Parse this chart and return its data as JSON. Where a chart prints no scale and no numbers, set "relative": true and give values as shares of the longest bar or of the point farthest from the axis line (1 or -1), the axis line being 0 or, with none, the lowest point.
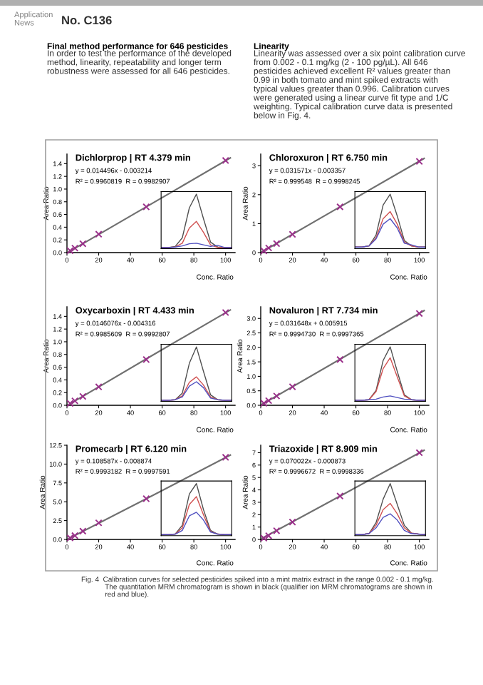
{
  "chart_data": [
    {
      "type": "other",
      "annotations": [
        "Application\nNews",
        "No. C136",
        "Final method performance for 646 pesticides",
        "In order to test the performance of the developed\nmethod, linearity, repeatability and longer term\nrobustness were assessed for all 646 pesticides.",
        "Linearity",
        "Linearity was assessed over a six point calibration curve\nfrom 0.002 - 0.1 mg/kg (2 - 100 pg/µL). All 646\npesticides achieved excellent R² values greater than\n0.99 in both tomato and mint spiked extracts with\ntypical values greater than 0.996. Calibration curves\nwere generated using a linear curve fit type and 1/C\nweighting. Typical calibration curve data is presented\nbelow in Fig. 4.",
        "Fig. 4  Calibration curves for selected pesticides spiked into a mint matrix extract in the range 0.002 - 0.1 mg/kg.\n            The quantitation MRM chromatogram is shown in black (qualifier ion MRM chromatograms are shown in\n            red and blue)."
      ]
    },
    {
      "type": "scatter",
      "title": "Dichlorprop | RT 4.379 min",
      "annotations": [
        "y = 0.014496x - 0.003214",
        "R² = 0.9960819  R = 0.9982907"
      ],
      "xlabel": "Conc. Ratio",
      "ylabel": "Area Ratio",
      "marker": "cross",
      "x": [
        2,
        5,
        10,
        20,
        50,
        100
      ],
      "xlim": [
        0,
        106
      ],
      "xticks": [
        0,
        20,
        40,
        60,
        80,
        100
      ],
      "ylim": [
        0,
        1.55
      ],
      "yticks": [
        {
          "value": 0,
          "label": "0.0"
        },
        0.2,
        0.4,
        0.6,
        0.8,
        {
          "value": 1,
          "label": "1.0"
        },
        1.2,
        1.4
      ],
      "series": [
        {
          "color": "#9a2f8a",
          "values": [
            0.03,
            0.07,
            0.14,
            0.29,
            0.72,
            1.45
          ]
        },
        {
          "type": "line",
          "marker": "none",
          "color": "#707070",
          "x": [
            1,
            50,
            103
          ],
          "values": [
            0.01,
            0.72,
            1.49
          ]
        }
      ]
    },
    {
      "type": "line",
      "relative": true,
      "categories": [
        null,
        null,
        null,
        null,
        null,
        null,
        null,
        null,
        null,
        null,
        null
      ],
      "series": [
        {
          "color": "#505050",
          "values": [
            0.02,
            0.02,
            0.04,
            0.2,
            0.75,
            1,
            0.55,
            0.12,
            0.03,
            0.02,
            0.02
          ]
        },
        {
          "color": "#d05050",
          "values": [
            0.02,
            0.02,
            0.03,
            0.1,
            0.38,
            0.5,
            0.3,
            0.07,
            0.02,
            0.02,
            0.02
          ]
        },
        {
          "color": "#5050c0",
          "values": [
            0.02,
            0.02,
            0.03,
            0.05,
            0.09,
            0.1,
            0.07,
            0.04,
            0.06,
            0.02,
            0.02
          ]
        }
      ]
    },
    {
      "type": "scatter",
      "title": "Chloroxuron | RT 6.750 min",
      "annotations": [
        "y = 0.031571x - 0.003357",
        "R² = 0.999548  R = 0.9998245"
      ],
      "xlabel": "Conc. Ratio",
      "ylabel": "Area Ratio",
      "marker": "cross",
      "x": [
        2,
        5,
        10,
        20,
        50,
        100
      ],
      "xlim": [
        0,
        106
      ],
      "xticks": [
        0,
        20,
        40,
        60,
        80,
        100
      ],
      "ylim": [
        0,
        3.4
      ],
      "yticks": [
        0,
        1,
        2,
        3
      ],
      "series": [
        {
          "color": "#9a2f8a",
          "values": [
            0.06,
            0.16,
            0.31,
            0.63,
            1.58,
            3.15
          ]
        },
        {
          "type": "line",
          "marker": "none",
          "color": "#707070",
          "x": [
            1,
            50,
            103
          ],
          "values": [
            0.03,
            1.58,
            3.25
          ]
        }
      ]
    },
    {
      "type": "line",
      "relative": true,
      "categories": [
        null,
        null,
        null,
        null,
        null,
        null,
        null,
        null,
        null,
        null,
        null
      ],
      "series": [
        {
          "color": "#505050",
          "values": [
            0.03,
            0.03,
            0.05,
            0.25,
            0.8,
            1,
            0.6,
            0.15,
            0.05,
            0.03,
            0.03
          ]
        },
        {
          "color": "#d05050",
          "values": [
            0.03,
            0.03,
            0.05,
            0.2,
            0.55,
            0.68,
            0.45,
            0.12,
            0.05,
            0.03,
            0.03
          ]
        },
        {
          "color": "#5050c0",
          "values": [
            0.03,
            0.03,
            0.05,
            0.18,
            0.45,
            0.55,
            0.38,
            0.1,
            0.07,
            0.03,
            0.03
          ]
        }
      ]
    },
    {
      "type": "scatter",
      "title": "Oxycarboxin | RT 4.433 min",
      "annotations": [
        "y = 0.0146076x - 0.004316",
        "R² = 0.9985609  R = 0.9992807"
      ],
      "xlabel": "Conc. Ratio",
      "ylabel": "Area Ratio",
      "marker": "cross",
      "x": [
        2,
        5,
        10,
        20,
        50,
        100
      ],
      "xlim": [
        0,
        106
      ],
      "xticks": [
        0,
        20,
        40,
        60,
        80,
        100
      ],
      "ylim": [
        0,
        1.55
      ],
      "yticks": [
        {
          "value": 0,
          "label": "0.0"
        },
        0.2,
        0.4,
        0.6,
        0.8,
        {
          "value": 1,
          "label": "1.0"
        },
        1.2,
        1.4
      ],
      "series": [
        {
          "color": "#9a2f8a",
          "values": [
            0.03,
            0.07,
            0.14,
            0.29,
            0.72,
            1.46
          ]
        },
        {
          "type": "line",
          "marker": "none",
          "color": "#707070",
          "x": [
            1,
            50,
            103
          ],
          "values": [
            0.01,
            0.73,
            1.5
          ]
        }
      ]
    },
    {
      "type": "line",
      "relative": true,
      "categories": [
        null,
        null,
        null,
        null,
        null,
        null,
        null,
        null,
        null,
        null,
        null
      ],
      "series": [
        {
          "color": "#505050",
          "values": [
            0.02,
            0.02,
            0.03,
            0.15,
            0.7,
            1,
            0.55,
            0.12,
            0.03,
            0.02,
            0.02
          ]
        },
        {
          "color": "#d05050",
          "values": [
            0.02,
            0.02,
            0.03,
            0.1,
            0.35,
            0.45,
            0.3,
            0.08,
            0.03,
            0.02,
            0.02
          ]
        },
        {
          "color": "#5050c0",
          "values": [
            0.02,
            0.02,
            0.03,
            0.08,
            0.28,
            0.36,
            0.25,
            0.06,
            0.03,
            0.02,
            0.02
          ]
        }
      ]
    },
    {
      "type": "scatter",
      "title": "Novaluron | RT 7.734 min",
      "annotations": [
        "y = 0.031648x + 0.005915",
        "R² = 0.9994730  R = 0.9997365"
      ],
      "xlabel": "Conc. Ratio",
      "ylabel": "Area Ratio",
      "marker": "cross",
      "x": [
        2,
        5,
        10,
        20,
        50,
        100
      ],
      "xlim": [
        0,
        106
      ],
      "xticks": [
        0,
        20,
        40,
        60,
        80,
        100
      ],
      "ylim": [
        0,
        3.4
      ],
      "yticks": [
        {
          "value": 0,
          "label": "0.0"
        },
        0.5,
        {
          "value": 1,
          "label": "1.0"
        },
        1.5,
        {
          "value": 2,
          "label": "2.0"
        },
        2.5,
        {
          "value": 3,
          "label": "3.0"
        }
      ],
      "series": [
        {
          "color": "#9a2f8a",
          "values": [
            0.07,
            0.16,
            0.32,
            0.64,
            1.58,
            3.17
          ]
        },
        {
          "type": "line",
          "marker": "none",
          "color": "#707070",
          "x": [
            1,
            50,
            103
          ],
          "values": [
            0.04,
            1.59,
            3.27
          ]
        }
      ]
    },
    {
      "type": "line",
      "relative": true,
      "categories": [
        null,
        null,
        null,
        null,
        null,
        null,
        null,
        null,
        null,
        null,
        null
      ],
      "series": [
        {
          "color": "#505050",
          "values": [
            0.02,
            0.02,
            0.03,
            0.2,
            0.75,
            1,
            0.55,
            0.12,
            0.03,
            0.02,
            0.02
          ]
        },
        {
          "color": "#d05050",
          "values": [
            0.02,
            0.02,
            0.03,
            0.18,
            0.6,
            0.8,
            0.45,
            0.1,
            0.03,
            0.02,
            0.02
          ]
        },
        {
          "color": "#5050c0",
          "values": [
            0.02,
            0.02,
            0.03,
            0.04,
            0.08,
            0.1,
            0.07,
            0.04,
            0.03,
            0.02,
            0.02
          ]
        }
      ]
    },
    {
      "type": "scatter",
      "title": "Promecarb | RT 6.120 min",
      "annotations": [
        "y = 0.108587x - 0.008874",
        "R² = 0.9993182  R = 0.9997591"
      ],
      "xlabel": "Conc. Ratio",
      "ylabel": "Area Ratio",
      "marker": "cross",
      "x": [
        2,
        5,
        10,
        20,
        50,
        100
      ],
      "xlim": [
        0,
        106
      ],
      "xticks": [
        0,
        20,
        40,
        60,
        80,
        100
      ],
      "ylim": [
        0,
        12.5
      ],
      "yticks": [
        {
          "value": 0,
          "label": "0.0"
        },
        2.5,
        {
          "value": 5,
          "label": "5.0"
        },
        7.5,
        {
          "value": 10,
          "label": "10.0"
        },
        12.5
      ],
      "series": [
        {
          "color": "#9a2f8a",
          "values": [
            0.2,
            0.5,
            1.1,
            2.2,
            5.4,
            10.9
          ]
        },
        {
          "type": "line",
          "marker": "none",
          "color": "#707070",
          "x": [
            1,
            50,
            103
          ],
          "values": [
            0.1,
            5.4,
            11.2
          ]
        }
      ]
    },
    {
      "type": "line",
      "relative": true,
      "categories": [
        null,
        null,
        null,
        null,
        null,
        null,
        null,
        null,
        null,
        null,
        null
      ],
      "series": [
        {
          "color": "#505050",
          "values": [
            0.02,
            0.02,
            0.03,
            0.2,
            0.8,
            1,
            0.5,
            0.1,
            0.03,
            0.02,
            0.02
          ]
        },
        {
          "color": "#d05050",
          "values": [
            0.02,
            0.02,
            0.03,
            0.15,
            0.6,
            0.75,
            0.4,
            0.08,
            0.03,
            0.02,
            0.02
          ]
        },
        {
          "color": "#5050c0",
          "values": [
            0.02,
            0.02,
            0.03,
            0.1,
            0.38,
            0.45,
            0.3,
            0.07,
            0.03,
            0.02,
            0.02
          ]
        }
      ]
    },
    {
      "type": "scatter",
      "title": "Triazoxide | RT 8.909 min",
      "annotations": [
        "y = 0.070022x - 0.000873",
        "R² = 0.9996672  R = 0.9998336"
      ],
      "xlabel": "Conc. Ratio",
      "ylabel": "Area Ratio",
      "marker": "cross",
      "x": [
        2,
        5,
        10,
        20,
        50,
        100
      ],
      "xlim": [
        0,
        106
      ],
      "xticks": [
        0,
        20,
        40,
        60,
        80,
        100
      ],
      "ylim": [
        0,
        7.6
      ],
      "yticks": [
        0,
        1,
        2,
        3,
        4,
        5,
        6,
        7
      ],
      "series": [
        {
          "color": "#9a2f8a",
          "values": [
            0.1,
            0.3,
            0.7,
            1.4,
            3.5,
            7.0
          ]
        },
        {
          "type": "line",
          "marker": "none",
          "color": "#707070",
          "x": [
            1,
            50,
            103
          ],
          "values": [
            0.1,
            3.5,
            7.2
          ]
        }
      ]
    },
    {
      "type": "line",
      "relative": true,
      "categories": [
        null,
        null,
        null,
        null,
        null,
        null,
        null,
        null,
        null,
        null,
        null
      ],
      "series": [
        {
          "color": "#505050",
          "values": [
            0.02,
            0.02,
            0.04,
            0.25,
            0.7,
            1,
            0.6,
            0.2,
            0.05,
            0.03,
            0.02
          ]
        },
        {
          "color": "#d05050",
          "values": [
            0.02,
            0.02,
            0.04,
            0.2,
            0.5,
            0.62,
            0.42,
            0.15,
            0.05,
            0.03,
            0.02
          ]
        },
        {
          "color": "#5050c0",
          "values": [
            0.02,
            0.02,
            0.04,
            0.15,
            0.35,
            0.42,
            0.3,
            0.1,
            0.04,
            0.03,
            0.02
          ]
        }
      ]
    }
  ]
}
